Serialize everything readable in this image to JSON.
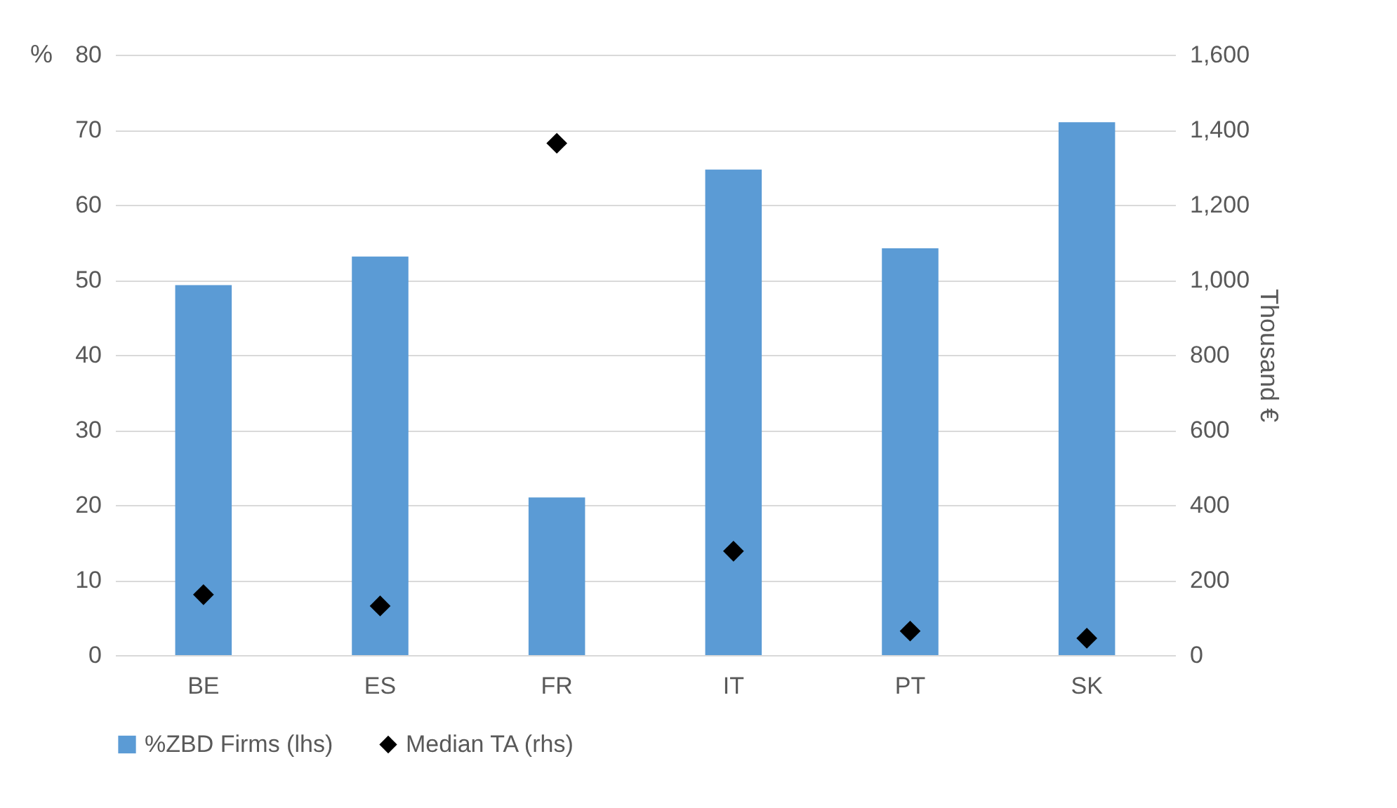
{
  "chart_data": {
    "type": "bar",
    "categories": [
      "BE",
      "ES",
      "FR",
      "IT",
      "PT",
      "SK"
    ],
    "series": [
      {
        "name": "%ZBD Firms (lhs)",
        "color": "#5b9bd5",
        "values": [
          49.3,
          53.1,
          21,
          64.7,
          54.2,
          71
        ]
      },
      {
        "name": "Median TA (rhs)",
        "color": "#000000",
        "type": "scatter",
        "axis": "y2",
        "marker": "diamond",
        "values": [
          161,
          131,
          1364,
          277,
          64,
          45
        ]
      }
    ],
    "ylabel": "%",
    "y2label": "Thousand €",
    "ylim": [
      0,
      80
    ],
    "yticks": [
      0,
      10,
      20,
      30,
      40,
      50,
      60,
      70,
      80
    ],
    "y2lim": [
      0,
      1600
    ],
    "y2ticks": [
      0,
      {
        "value": 200,
        "label": "200"
      },
      {
        "value": 400,
        "label": "400"
      },
      {
        "value": 600,
        "label": "600"
      },
      {
        "value": 800,
        "label": "800"
      },
      {
        "value": 1000,
        "label": "1,000"
      },
      {
        "value": 1200,
        "label": "1,200"
      },
      {
        "value": 1400,
        "label": "1,400"
      },
      {
        "value": 1600,
        "label": "1,600"
      }
    ],
    "grid": "y",
    "legend": "bottom"
  }
}
